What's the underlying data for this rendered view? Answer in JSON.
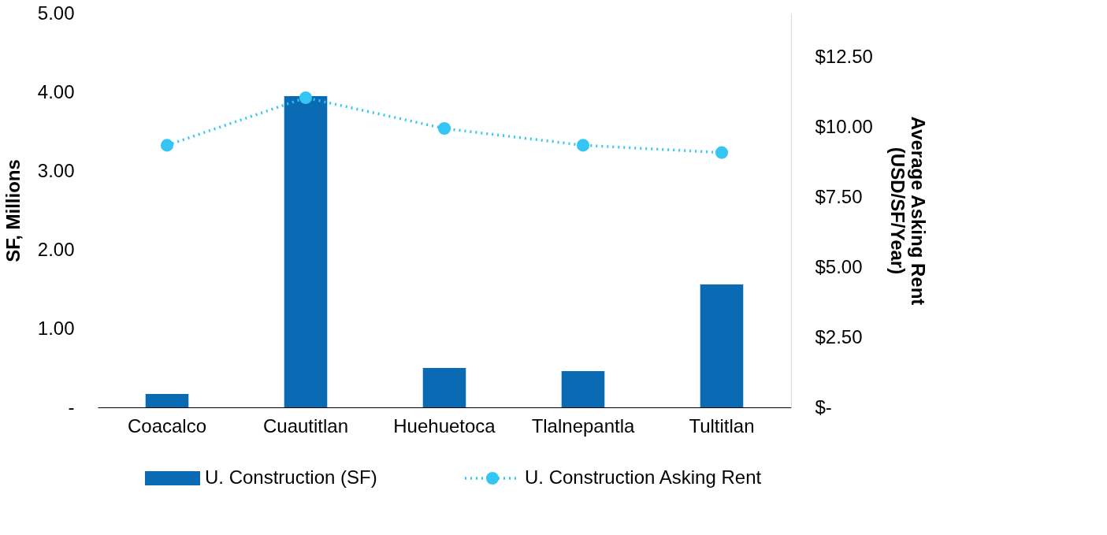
{
  "chart_data": {
    "type": "bar",
    "categories": [
      "Coacalco",
      "Cuautitlan",
      "Huehuetoca",
      "Tlalnepantla",
      "Tultitlan"
    ],
    "series": [
      {
        "name": "U. Construction (SF)",
        "color": "#0a6ab4",
        "values": [
          0.17,
          3.95,
          0.5,
          0.46,
          1.56
        ]
      },
      {
        "name": "U. Construction Asking Rent",
        "type": "line",
        "axis": "y2",
        "color": "#33c6f4",
        "marker": "circle",
        "line_style": "dotted",
        "values": [
          9.36,
          11.06,
          9.96,
          9.36,
          9.1
        ]
      }
    ],
    "ylabel": "SF, Millions",
    "y2label": "Average Asking Rent (USD/SF/Year)",
    "ylim": [
      0,
      5
    ],
    "yticks": [
      {
        "value": 0,
        "label": "-"
      },
      {
        "value": 1,
        "label": "1.00"
      },
      {
        "value": 2,
        "label": "2.00"
      },
      {
        "value": 3,
        "label": "3.00"
      },
      {
        "value": 4,
        "label": "4.00"
      },
      {
        "value": 5,
        "label": "5.00"
      }
    ],
    "y2lim": [
      0,
      14.07
    ],
    "y2ticks": [
      {
        "value": 0,
        "label": "$-"
      },
      {
        "value": 2.5,
        "label": "$2.50"
      },
      {
        "value": 5,
        "label": "$5.00"
      },
      {
        "value": 7.5,
        "label": "$7.50"
      },
      {
        "value": 10,
        "label": "$10.00"
      },
      {
        "value": 12.5,
        "label": "$12.50"
      }
    ],
    "grid": false,
    "legend": "bottom"
  }
}
